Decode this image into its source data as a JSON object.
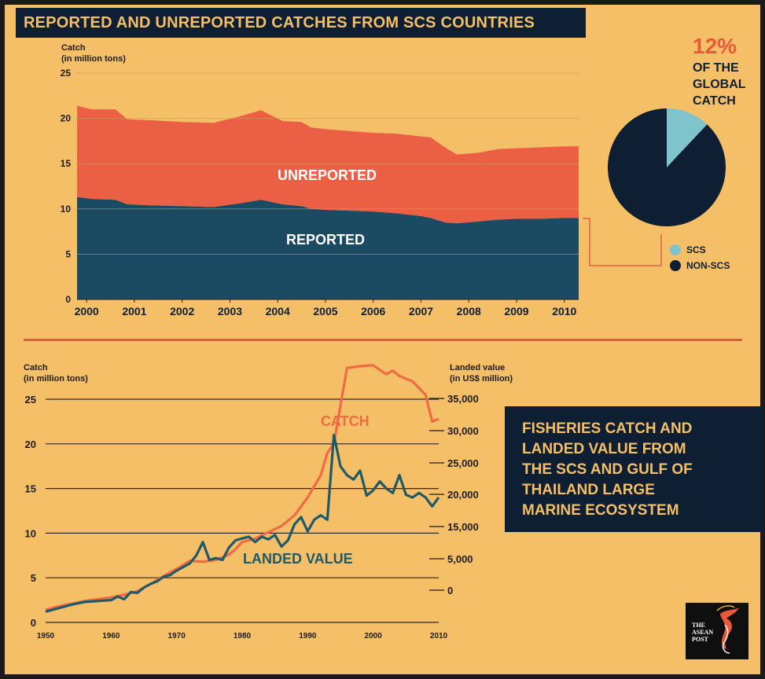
{
  "title": "REPORTED AND UNREPORTED CATCHES FROM SCS COUNTRIES",
  "colors": {
    "background": "#f5bf67",
    "navy": "#0f1f33",
    "unreported": "#eb5f45",
    "reported": "#1b4a63",
    "catch_line": "#ee6b44",
    "landed_line": "#1f5a68",
    "scs": "#7fc3cd",
    "non_scs": "#0f1f33"
  },
  "pie": {
    "percent": "12%",
    "label": "OF THE\nGLOBAL\nCATCH",
    "legend": [
      {
        "label": "SCS",
        "color": "#7fc3cd"
      },
      {
        "label": "NON-SCS",
        "color": "#0f1f33"
      }
    ]
  },
  "info_box": "FISHERIES CATCH AND\nLANDED VALUE FROM\nTHE SCS AND GULF OF\nTHAILAND LARGE\nMARINE ECOSYSTEM",
  "logo": {
    "text": "THE\nASEAN\nPOST",
    "icon": "hummingbird-icon"
  },
  "chart_data": [
    {
      "type": "area",
      "ylabel": "Catch\n(in million tons)",
      "ylim": [
        0,
        25
      ],
      "yticks": [
        0,
        5,
        10,
        15,
        20,
        25
      ],
      "xticks": [
        "2000",
        "2001",
        "2002",
        "2003",
        "2004",
        "2005",
        "2006",
        "2007",
        "2008",
        "2009",
        "2010"
      ],
      "xlim": [
        1999.8,
        2010.3
      ],
      "x": [
        1999.8,
        2000.1,
        2000.6,
        2000.85,
        2001.3,
        2002.0,
        2002.65,
        2003.2,
        2003.65,
        2004.1,
        2004.5,
        2004.7,
        2005.0,
        2005.5,
        2006.0,
        2006.5,
        2007.0,
        2007.2,
        2007.5,
        2007.75,
        2008.2,
        2008.6,
        2009.0,
        2009.5,
        2010.0,
        2010.3
      ],
      "series": [
        {
          "name": "REPORTED",
          "values": [
            11.3,
            11.1,
            11.0,
            10.5,
            10.4,
            10.3,
            10.2,
            10.6,
            11.0,
            10.5,
            10.3,
            10.0,
            9.9,
            9.8,
            9.7,
            9.5,
            9.2,
            9.0,
            8.5,
            8.4,
            8.6,
            8.8,
            8.9,
            8.9,
            9.0,
            9.0
          ]
        },
        {
          "name": "UNREPORTED",
          "values": [
            10.1,
            9.9,
            10.0,
            9.4,
            9.4,
            9.3,
            9.3,
            9.6,
            9.9,
            9.2,
            9.3,
            9.0,
            8.9,
            8.8,
            8.7,
            8.8,
            8.8,
            8.9,
            8.3,
            7.6,
            7.6,
            7.8,
            7.8,
            7.9,
            7.9,
            7.9
          ]
        }
      ]
    },
    {
      "type": "pie",
      "values": [
        {
          "label": "SCS",
          "value": 12
        },
        {
          "label": "NON-SCS",
          "value": 88
        }
      ]
    },
    {
      "type": "line",
      "ylabel": "Catch\n(in million tons)",
      "y2label": "Landed value\n(in US$ million)",
      "ylim": [
        0,
        25
      ],
      "yticks": [
        0,
        5,
        10,
        15,
        20,
        25
      ],
      "y2ticks": [
        "0",
        "5,000",
        "15,000",
        "20,000",
        "25,000",
        "30,000",
        "35,000"
      ],
      "xlim": [
        1950,
        2010
      ],
      "xticks": [
        1950,
        1960,
        1970,
        1980,
        1990,
        2000,
        2010
      ],
      "series": [
        {
          "name": "CATCH",
          "x": [
            1950,
            1952,
            1954,
            1956,
            1958,
            1960,
            1962,
            1964,
            1966,
            1968,
            1970,
            1972,
            1974,
            1976,
            1978,
            1979,
            1980,
            1982,
            1984,
            1986,
            1988,
            1990,
            1992,
            1993,
            1994,
            1996,
            1998,
            2000,
            2002,
            2003,
            2004,
            2006,
            2008,
            2009,
            2010
          ],
          "values": [
            1.4,
            1.8,
            2.1,
            2.4,
            2.6,
            2.8,
            3.1,
            3.5,
            4.3,
            5.2,
            6.0,
            6.9,
            6.8,
            7.0,
            7.6,
            8.2,
            9.0,
            9.4,
            10.1,
            10.8,
            12.0,
            14.0,
            16.5,
            19.0,
            20.0,
            28.5,
            28.7,
            28.8,
            27.8,
            28.2,
            27.6,
            27.0,
            25.5,
            22.5,
            22.8
          ]
        },
        {
          "name": "LANDED VALUE",
          "x": [
            1950,
            1952,
            1954,
            1956,
            1958,
            1960,
            1961,
            1962,
            1963,
            1964,
            1965,
            1966,
            1967,
            1968,
            1969,
            1970,
            1971,
            1972,
            1973,
            1974,
            1975,
            1976,
            1977,
            1978,
            1979,
            1980,
            1981,
            1982,
            1983,
            1984,
            1985,
            1986,
            1987,
            1988,
            1989,
            1990,
            1991,
            1992,
            1993,
            1994,
            1995,
            1996,
            1997,
            1998,
            1999,
            2000,
            2001,
            2002,
            2003,
            2004,
            2005,
            2006,
            2007,
            2008,
            2009,
            2010
          ],
          "values": [
            1.2,
            1.6,
            2.0,
            2.3,
            2.4,
            2.5,
            2.9,
            2.6,
            3.4,
            3.3,
            3.9,
            4.3,
            4.6,
            5.1,
            5.3,
            5.8,
            6.2,
            6.6,
            7.5,
            9.0,
            7.0,
            7.2,
            7.0,
            8.4,
            9.2,
            9.4,
            9.6,
            9.0,
            9.6,
            9.3,
            9.8,
            8.5,
            9.2,
            11.0,
            11.8,
            10.2,
            11.5,
            12.0,
            11.5,
            21.0,
            17.5,
            16.5,
            16.0,
            17.0,
            14.2,
            14.8,
            15.8,
            15.0,
            14.5,
            16.5,
            14.3,
            14.0,
            14.5,
            14.0,
            13.0,
            14.0
          ]
        }
      ]
    }
  ]
}
